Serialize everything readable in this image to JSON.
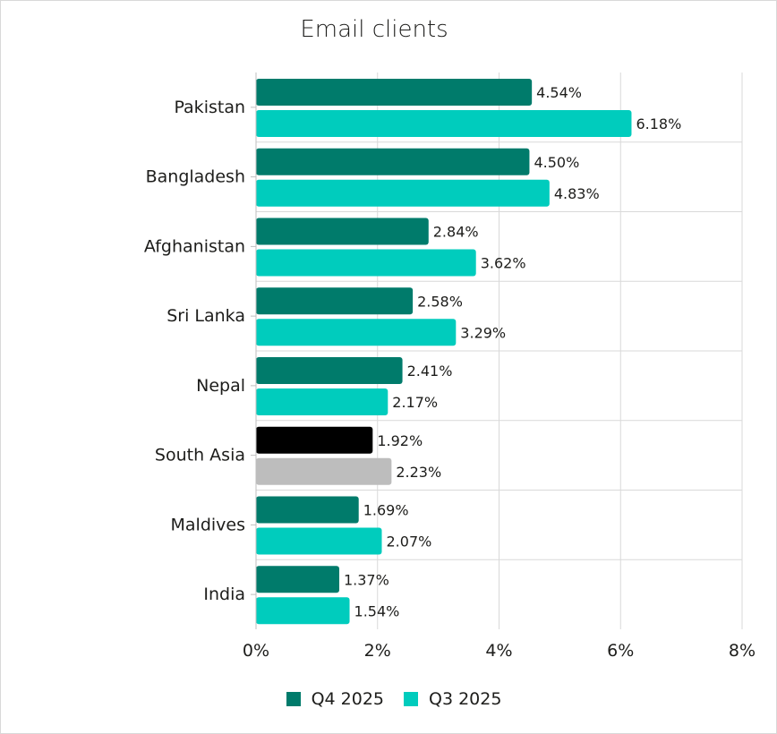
{
  "chart_data": {
    "type": "bar",
    "title": "Email clients",
    "orientation": "horizontal",
    "categories": [
      "Pakistan",
      "Bangladesh",
      "Afghanistan",
      "Sri Lanka",
      "Nepal",
      "South Asia",
      "Maldives",
      "India"
    ],
    "series": [
      {
        "name": "Q4 2025",
        "color": "#007b6b",
        "values": [
          4.54,
          4.5,
          2.84,
          2.58,
          2.41,
          1.92,
          1.69,
          1.37
        ],
        "labels": [
          "4.54%",
          "4.50%",
          "2.84%",
          "2.58%",
          "2.41%",
          "1.92%",
          "1.69%",
          "1.37%"
        ]
      },
      {
        "name": "Q3 2025",
        "color": "#00ccbd",
        "values": [
          6.18,
          4.83,
          3.62,
          3.29,
          2.17,
          2.23,
          2.07,
          1.54
        ],
        "labels": [
          "6.18%",
          "4.83%",
          "3.62%",
          "3.29%",
          "2.17%",
          "2.23%",
          "2.07%",
          "1.54%"
        ]
      }
    ],
    "highlight": {
      "category": "South Asia",
      "colors": {
        "Q4 2025": "#000000",
        "Q3 2025": "#bdbdbd"
      }
    },
    "xlim": [
      0,
      8
    ],
    "xticks": [
      "0%",
      "2%",
      "4%",
      "6%",
      "8%"
    ],
    "grid": true,
    "legend_position": "bottom"
  }
}
